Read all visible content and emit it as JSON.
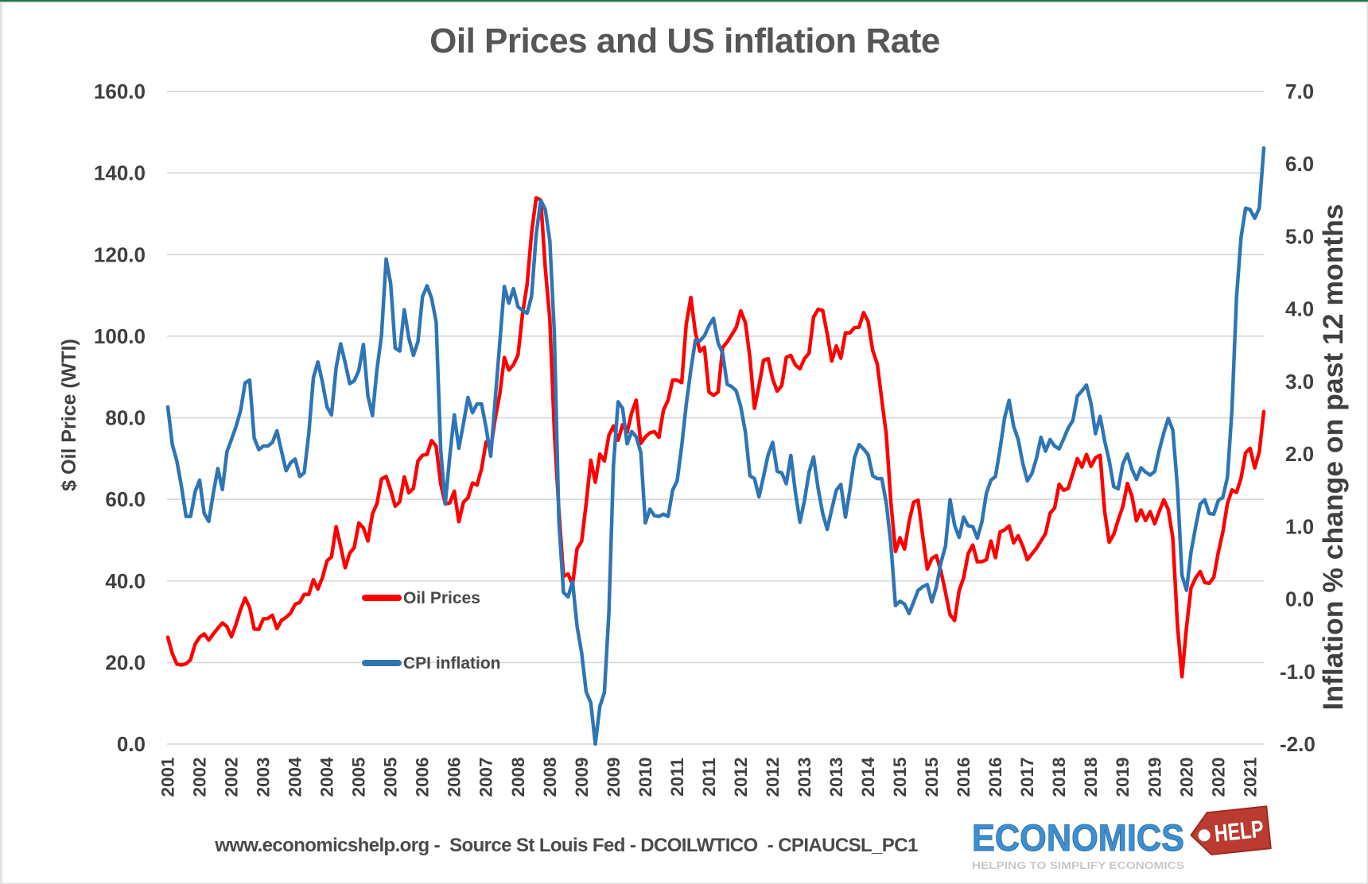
{
  "frame": {
    "top_edge_color": "#217346",
    "border_color": "#e3e3e3",
    "background": "#ffffff"
  },
  "chart_data": {
    "type": "line",
    "title": "Oil Prices and US inflation Rate",
    "x_start": "2001-09",
    "x_end": "2021-10",
    "x_frequency": "monthly",
    "x_tick_interval_months": 7,
    "x_tick_labels": [
      "2001",
      "2002",
      "2002",
      "2003",
      "2004",
      "2004",
      "2005",
      "2005",
      "2006",
      "2006",
      "2007",
      "2008",
      "2008",
      "2009",
      "2009",
      "2010",
      "2011",
      "2011",
      "2012",
      "2012",
      "2013",
      "2013",
      "2014",
      "2015",
      "2015",
      "2016",
      "2016",
      "2017",
      "2018",
      "2018",
      "2019",
      "2019",
      "2020",
      "2020",
      "2021"
    ],
    "left_axis": {
      "title": "$ Oil Price (WTI)",
      "min": 0,
      "max": 160,
      "tick_step": 20,
      "tick_labels": [
        "160.0",
        "140.0",
        "120.0",
        "100.0",
        "80.0",
        "60.0",
        "40.0",
        "20.0",
        "0.0"
      ]
    },
    "right_axis": {
      "title": "Inflation % change on past 12 months",
      "min": -2,
      "max": 7,
      "tick_step": 1,
      "tick_labels": [
        "7.0",
        "6.0",
        "5.0",
        "4.0",
        "3.0",
        "2.0",
        "1.0",
        "0.0",
        "-1.0",
        "-2.0"
      ]
    },
    "grid": true,
    "gridline_color": "#d9d9d9",
    "text_color": "#404040",
    "title_color": "#565656",
    "legend_position": "inside-left",
    "legend": [
      {
        "label": "Oil Prices",
        "color": "#ff0000"
      },
      {
        "label": "CPI inflation",
        "color": "#2e75b6"
      }
    ],
    "series": [
      {
        "name": "Oil Prices",
        "axis": "left",
        "color": "#ff0000",
        "values": [
          26.2,
          22.2,
          19.6,
          19.4,
          19.7,
          20.7,
          24.5,
          26.2,
          27.0,
          25.5,
          27.0,
          28.4,
          29.7,
          28.8,
          26.3,
          29.4,
          33.0,
          35.8,
          33.5,
          28.2,
          28.1,
          30.7,
          30.8,
          31.6,
          28.3,
          30.3,
          31.1,
          32.1,
          34.3,
          34.7,
          36.7,
          36.7,
          40.3,
          38.0,
          40.8,
          44.9,
          45.9,
          53.3,
          48.5,
          43.2,
          46.8,
          48.2,
          54.2,
          53.0,
          49.8,
          56.4,
          59.0,
          65.0,
          65.6,
          62.3,
          58.3,
          59.4,
          65.5,
          61.6,
          62.7,
          69.4,
          70.8,
          71.0,
          74.4,
          73.0,
          63.8,
          58.9,
          59.1,
          62.0,
          54.5,
          59.3,
          60.4,
          64.0,
          63.5,
          67.5,
          74.1,
          72.4,
          79.9,
          85.8,
          94.8,
          91.7,
          93.0,
          95.4,
          105.5,
          112.6,
          125.4,
          133.9,
          133.4,
          116.7,
          104.1,
          76.6,
          57.3,
          41.1,
          41.7,
          39.1,
          47.9,
          49.7,
          59.0,
          69.6,
          64.2,
          71.1,
          69.4,
          75.7,
          78.0,
          74.5,
          78.3,
          76.4,
          81.2,
          84.3,
          73.7,
          75.3,
          76.3,
          76.6,
          75.2,
          81.9,
          84.3,
          89.2,
          89.2,
          88.6,
          102.9,
          109.5,
          100.9,
          96.3,
          97.3,
          86.3,
          85.5,
          86.3,
          97.2,
          98.6,
          100.3,
          102.2,
          106.2,
          103.3,
          94.7,
          82.3,
          87.9,
          94.1,
          94.5,
          89.5,
          86.5,
          87.9,
          94.8,
          95.3,
          92.9,
          92.0,
          94.5,
          95.8,
          104.7,
          106.6,
          106.3,
          100.5,
          93.9,
          97.6,
          94.6,
          100.8,
          100.8,
          102.1,
          102.2,
          105.8,
          103.6,
          96.5,
          93.2,
          84.4,
          75.8,
          59.3,
          47.2,
          50.6,
          47.8,
          54.5,
          59.3,
          59.8,
          50.9,
          42.9,
          45.5,
          46.2,
          42.4,
          37.2,
          31.7,
          30.3,
          37.6,
          40.8,
          46.7,
          48.8,
          44.7,
          44.7,
          45.2,
          49.8,
          45.7,
          52.0,
          52.5,
          53.5,
          49.3,
          51.1,
          48.5,
          45.2,
          46.6,
          48.0,
          49.8,
          51.6,
          56.6,
          57.9,
          63.7,
          62.2,
          62.7,
          66.3,
          70.0,
          67.9,
          71.0,
          68.1,
          70.2,
          70.8,
          57.0,
          49.5,
          51.4,
          55.0,
          58.2,
          63.9,
          60.8,
          54.7,
          57.4,
          54.8,
          57.0,
          54.0,
          57.0,
          59.9,
          57.5,
          50.5,
          29.2,
          16.5,
          28.6,
          38.3,
          40.7,
          42.3,
          39.6,
          39.4,
          40.9,
          47.0,
          52.0,
          59.0,
          62.3,
          61.7,
          65.2,
          71.4,
          72.5,
          67.7,
          71.6,
          81.5
        ]
      },
      {
        "name": "CPI inflation",
        "axis": "right",
        "color": "#2e75b6",
        "values": [
          2.65,
          2.13,
          1.9,
          1.55,
          1.14,
          1.14,
          1.48,
          1.64,
          1.18,
          1.07,
          1.46,
          1.8,
          1.51,
          2.03,
          2.2,
          2.38,
          2.6,
          2.98,
          3.02,
          2.22,
          2.06,
          2.11,
          2.11,
          2.16,
          2.32,
          2.04,
          1.77,
          1.88,
          1.93,
          1.69,
          1.74,
          2.29,
          3.05,
          3.27,
          2.99,
          2.65,
          2.54,
          3.19,
          3.52,
          3.26,
          2.97,
          3.01,
          3.15,
          3.51,
          2.8,
          2.53,
          3.17,
          3.64,
          4.69,
          4.35,
          3.46,
          3.42,
          3.99,
          3.6,
          3.36,
          3.55,
          4.17,
          4.32,
          4.15,
          3.82,
          2.06,
          1.31,
          1.97,
          2.54,
          2.08,
          2.42,
          2.78,
          2.57,
          2.69,
          2.69,
          2.36,
          1.97,
          2.76,
          3.54,
          4.31,
          4.08,
          4.28,
          4.03,
          3.98,
          3.94,
          4.18,
          5.02,
          5.5,
          5.37,
          4.94,
          3.66,
          1.07,
          0.09,
          0.03,
          0.24,
          -0.38,
          -0.74,
          -1.28,
          -1.43,
          -2.1,
          -1.48,
          -1.29,
          -0.18,
          1.84,
          2.72,
          2.63,
          2.14,
          2.31,
          2.24,
          2.02,
          1.05,
          1.24,
          1.15,
          1.14,
          1.17,
          1.14,
          1.5,
          1.63,
          2.11,
          2.68,
          3.16,
          3.57,
          3.56,
          3.63,
          3.77,
          3.87,
          3.53,
          3.39,
          2.96,
          2.93,
          2.87,
          2.65,
          2.3,
          1.7,
          1.66,
          1.41,
          1.69,
          1.99,
          2.16,
          1.76,
          1.74,
          1.59,
          1.98,
          1.47,
          1.06,
          1.36,
          1.75,
          1.96,
          1.52,
          1.18,
          0.96,
          1.24,
          1.5,
          1.58,
          1.13,
          1.51,
          1.95,
          2.13,
          2.07,
          1.99,
          1.7,
          1.66,
          1.66,
          1.32,
          0.76,
          -0.09,
          -0.03,
          -0.07,
          -0.2,
          -0.04,
          0.12,
          0.17,
          0.2,
          -0.04,
          0.17,
          0.5,
          0.73,
          1.37,
          1.02,
          0.85,
          1.13,
          1.01,
          1.0,
          0.84,
          1.06,
          1.46,
          1.64,
          1.69,
          2.07,
          2.5,
          2.74,
          2.38,
          2.2,
          1.87,
          1.63,
          1.73,
          1.94,
          2.23,
          2.04,
          2.2,
          2.11,
          2.07,
          2.21,
          2.36,
          2.46,
          2.8,
          2.87,
          2.95,
          2.7,
          2.28,
          2.52,
          2.18,
          1.91,
          1.55,
          1.52,
          1.86,
          2.0,
          1.79,
          1.65,
          1.81,
          1.75,
          1.71,
          1.76,
          2.05,
          2.29,
          2.49,
          2.33,
          1.54,
          0.33,
          0.12,
          0.65,
          0.99,
          1.31,
          1.37,
          1.18,
          1.17,
          1.36,
          1.4,
          1.68,
          2.62,
          4.16,
          4.99,
          5.39,
          5.37,
          5.25,
          5.39,
          6.22
        ]
      }
    ]
  },
  "footer": {
    "source_line": "www.economicshelp.org -  Source St Louis Fed - DCOILWTICO  - CPIAUCSL_PC1"
  },
  "logo": {
    "brand": "ECONOMICS",
    "tag": "HELP",
    "tagline": "HELPING TO SIMPLIFY ECONOMICS",
    "brand_color": "#3e8fd0",
    "tag_color": "#bb3b31",
    "tag_edge_color": "#9a2b22",
    "tagline_color": "#c8c8c8"
  }
}
